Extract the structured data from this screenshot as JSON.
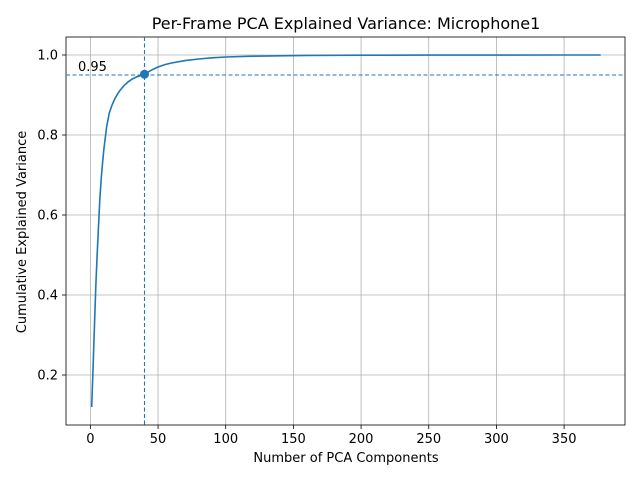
{
  "chart_data": {
    "type": "line",
    "title": "Per-Frame PCA Explained Variance: Microphone1",
    "xlabel": "Number of PCA Components",
    "ylabel": "Cumulative Explained Variance",
    "xlim": [
      -18,
      395
    ],
    "ylim": [
      0.075,
      1.045
    ],
    "xticks": [
      0,
      50,
      100,
      150,
      200,
      250,
      300,
      350
    ],
    "yticks": [
      0.2,
      0.4,
      0.6,
      0.8,
      1.0
    ],
    "xtick_labels": [
      "0",
      "50",
      "100",
      "150",
      "200",
      "250",
      "300",
      "350"
    ],
    "ytick_labels": [
      "0.2",
      "0.4",
      "0.6",
      "0.8",
      "1.0"
    ],
    "grid": true,
    "line_color": "#1f77b4",
    "series": [
      {
        "x": [
          1,
          2,
          3,
          4,
          5,
          6,
          7,
          8,
          9,
          10,
          12,
          14,
          16,
          18,
          20,
          22,
          25,
          28,
          31,
          34,
          37,
          40,
          45,
          50,
          55,
          60,
          70,
          80,
          90,
          100,
          120,
          140,
          160,
          200,
          250,
          300,
          350,
          377
        ],
        "y": [
          0.12,
          0.22,
          0.32,
          0.42,
          0.5,
          0.57,
          0.64,
          0.69,
          0.73,
          0.765,
          0.82,
          0.855,
          0.875,
          0.89,
          0.902,
          0.912,
          0.924,
          0.933,
          0.94,
          0.945,
          0.948,
          0.952,
          0.962,
          0.97,
          0.976,
          0.98,
          0.986,
          0.99,
          0.993,
          0.995,
          0.997,
          0.998,
          0.999,
          0.9995,
          0.9998,
          0.9999,
          1.0,
          1.0
        ]
      }
    ],
    "threshold": {
      "y": 0.95,
      "label": "0.95"
    },
    "marker_point": {
      "x": 40,
      "y": 0.952
    }
  }
}
